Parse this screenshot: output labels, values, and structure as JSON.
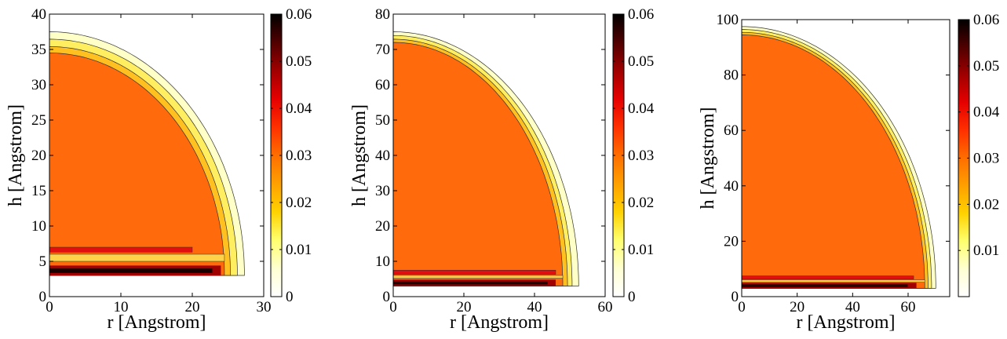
{
  "colormap": {
    "low": "#ffffff",
    "stops": [
      "#ffffff",
      "#ffffd2",
      "#ffff6e",
      "#ffd200",
      "#ffa000",
      "#ff6e00",
      "#ff3000",
      "#e60000",
      "#a00000",
      "#500000",
      "#000000"
    ],
    "inner_fill": "#ff6a0c",
    "shell_colors": [
      "#ffffc8",
      "#ffee60",
      "#ffc020"
    ],
    "contour_line": "#333333"
  },
  "chart_data": [
    {
      "type": "heatmap",
      "title": "",
      "xlabel": "r [Angstrom]",
      "ylabel": "h [Angstrom]",
      "xlim": [
        0,
        30
      ],
      "ylim": [
        0,
        40
      ],
      "xticks": [
        0,
        10,
        20,
        30
      ],
      "yticks": [
        0,
        5,
        10,
        15,
        20,
        25,
        30,
        35,
        40
      ],
      "colorbar": {
        "range": [
          0,
          0.06
        ],
        "ticks": [
          0,
          0.01,
          0.02,
          0.03,
          0.04,
          0.05,
          0.06
        ]
      },
      "droplet": {
        "outer_contact_r": 27.3,
        "outer_top_h": 37.5,
        "bulk_contact_r": 24.5,
        "bulk_top_h": 34.5,
        "shell_widths": [
          1.2,
          1.0,
          1.2
        ],
        "base_layer": {
          "h_min": 3.0,
          "h_max": 4.4,
          "r_max": 24.0
        },
        "red_band": {
          "h_min": 6.3,
          "h_max": 7.0,
          "r_max": 20.0
        },
        "gap_band": {
          "h_min": 5.0,
          "h_max": 6.0
        },
        "bulk_density": 0.033
      }
    },
    {
      "type": "heatmap",
      "title": "",
      "xlabel": "r [Angstrom]",
      "ylabel": "h [Angstrom]",
      "xlim": [
        0,
        60
      ],
      "ylim": [
        0,
        80
      ],
      "xticks": [
        0,
        20,
        40,
        60
      ],
      "yticks": [
        0,
        10,
        20,
        30,
        40,
        50,
        60,
        70,
        80
      ],
      "colorbar": {
        "range": [
          0,
          0.06
        ],
        "ticks": [
          0,
          0.01,
          0.02,
          0.03,
          0.04,
          0.05,
          0.06
        ]
      },
      "droplet": {
        "outer_contact_r": 52.5,
        "outer_top_h": 75.0,
        "bulk_contact_r": 48.0,
        "bulk_top_h": 72.0,
        "shell_widths": [
          1.4,
          1.2,
          1.2
        ],
        "base_layer": {
          "h_min": 3.0,
          "h_max": 4.8,
          "r_max": 46.0
        },
        "red_band": {
          "h_min": 6.3,
          "h_max": 7.5,
          "r_max": 46.0
        },
        "gap_band": {
          "h_min": 5.2,
          "h_max": 6.0
        },
        "bulk_density": 0.033
      }
    },
    {
      "type": "heatmap",
      "title": "",
      "xlabel": "r [Angstrom]",
      "ylabel": "h [Angstrom]",
      "xlim": [
        0,
        75
      ],
      "ylim": [
        0,
        100
      ],
      "xticks": [
        0,
        20,
        40,
        60
      ],
      "yticks": [
        0,
        20,
        40,
        60,
        80,
        100
      ],
      "colorbar": {
        "range": [
          0,
          0.06
        ],
        "ticks": [
          0.01,
          0.02,
          0.03,
          0.04,
          0.05,
          0.06
        ]
      },
      "droplet": {
        "outer_contact_r": 70.0,
        "outer_top_h": 97.5,
        "bulk_contact_r": 66.0,
        "bulk_top_h": 94.5,
        "shell_widths": [
          1.3,
          1.2,
          1.3
        ],
        "base_layer": {
          "h_min": 3.0,
          "h_max": 5.0,
          "r_max": 63.0
        },
        "red_band": {
          "h_min": 6.3,
          "h_max": 7.5,
          "r_max": 62.0
        },
        "gap_band": {
          "h_min": 5.2,
          "h_max": 6.0
        },
        "bulk_density": 0.033
      }
    }
  ]
}
